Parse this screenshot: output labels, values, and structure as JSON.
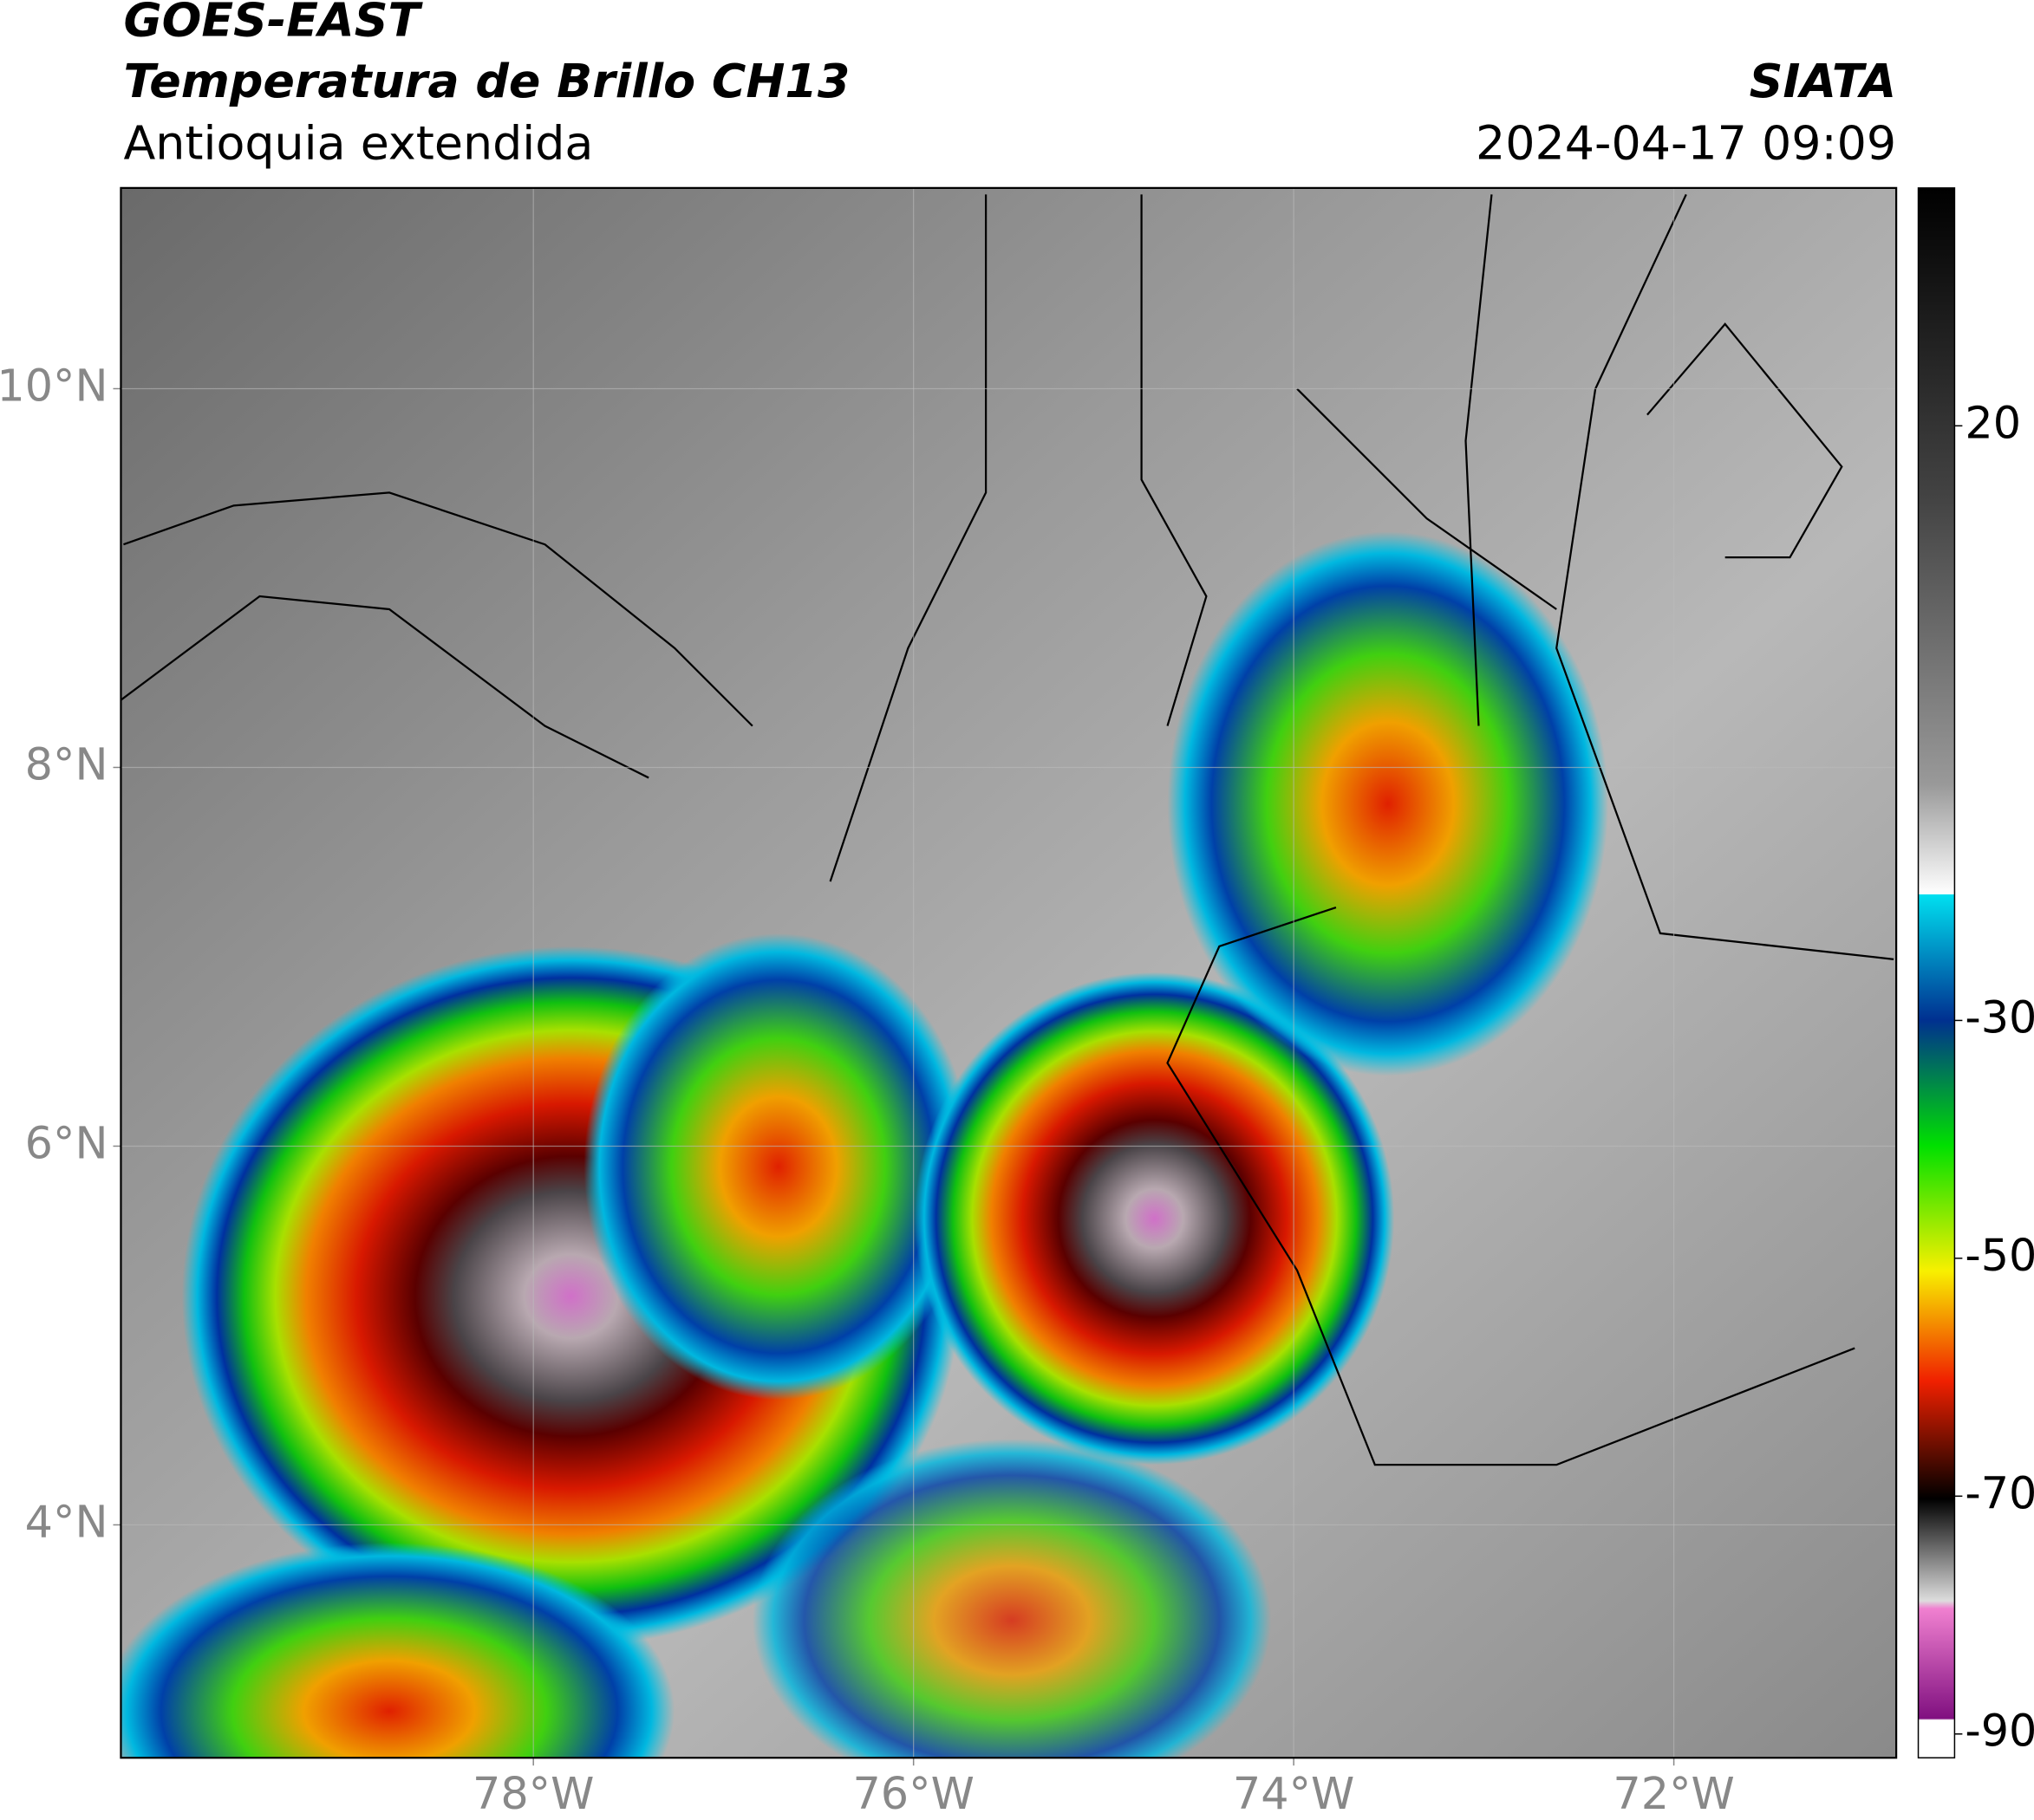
{
  "header": {
    "title": "GOES-EAST",
    "subtitle": "Temperatura de Brillo CH13",
    "region": "Antioquia extendida",
    "source": "SIATA",
    "datetime": "2024-04-17 09:09"
  },
  "map": {
    "xlim": [
      -80.17,
      -70.83
    ],
    "ylim": [
      2.77,
      11.06
    ],
    "xticks": [
      {
        "value": -78,
        "label": "78°W"
      },
      {
        "value": -76,
        "label": "76°W"
      },
      {
        "value": -74,
        "label": "74°W"
      },
      {
        "value": -72,
        "label": "72°W"
      }
    ],
    "yticks": [
      {
        "value": 10,
        "label": "10°N"
      },
      {
        "value": 8,
        "label": "8°N"
      },
      {
        "value": 6,
        "label": "6°N"
      },
      {
        "value": 4,
        "label": "4°N"
      }
    ],
    "grid": true
  },
  "colorbar": {
    "lim": [
      -92,
      40
    ],
    "ticks": [
      20,
      -30,
      -50,
      -70,
      -90
    ]
  }
}
